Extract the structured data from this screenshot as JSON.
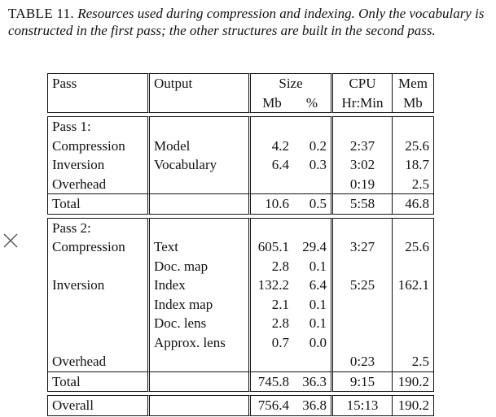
{
  "caption": {
    "label": "TABLE 11.",
    "text": "Resources used during compression and indexing. Only the vocabulary is constructed in the first pass; the other structures are built in the second pass."
  },
  "header": {
    "pass": "Pass",
    "output": "Output",
    "size": "Size",
    "cpu": "CPU",
    "mem": "Mem",
    "mb": "Mb",
    "pct": "%",
    "hrmin": "Hr:Min",
    "mem_mb": "Mb"
  },
  "pass1": {
    "title": "Pass 1:",
    "rows": [
      {
        "pass": "Compression",
        "output": "Model",
        "mb": "4.2",
        "pct": "0.2",
        "cpu": "2:37",
        "mem": "25.6"
      },
      {
        "pass": "Inversion",
        "output": "Vocabulary",
        "mb": "6.4",
        "pct": "0.3",
        "cpu": "3:02",
        "mem": "18.7"
      },
      {
        "pass": "Overhead",
        "output": "",
        "mb": "",
        "pct": "",
        "cpu": "0:19",
        "mem": "2.5"
      }
    ],
    "total": {
      "label": "Total",
      "mb": "10.6",
      "pct": "0.5",
      "cpu": "5:58",
      "mem": "46.8"
    }
  },
  "pass2": {
    "title": "Pass 2:",
    "rows": [
      {
        "pass": "Compression",
        "output": "Text",
        "mb": "605.1",
        "pct": "29.4",
        "cpu": "3:27",
        "mem": "25.6"
      },
      {
        "pass": "",
        "output": "Doc. map",
        "mb": "2.8",
        "pct": "0.1",
        "cpu": "",
        "mem": ""
      },
      {
        "pass": "Inversion",
        "output": "Index",
        "mb": "132.2",
        "pct": "6.4",
        "cpu": "5:25",
        "mem": "162.1"
      },
      {
        "pass": "",
        "output": "Index map",
        "mb": "2.1",
        "pct": "0.1",
        "cpu": "",
        "mem": ""
      },
      {
        "pass": "",
        "output": "Doc. lens",
        "mb": "2.8",
        "pct": "0.1",
        "cpu": "",
        "mem": ""
      },
      {
        "pass": "",
        "output": "Approx. lens",
        "mb": "0.7",
        "pct": "0.0",
        "cpu": "",
        "mem": ""
      },
      {
        "pass": "Overhead",
        "output": "",
        "mb": "",
        "pct": "",
        "cpu": "0:23",
        "mem": "2.5"
      }
    ],
    "total": {
      "label": "Total",
      "mb": "745.8",
      "pct": "36.3",
      "cpu": "9:15",
      "mem": "190.2"
    }
  },
  "overall": {
    "label": "Overall",
    "mb": "756.4",
    "pct": "36.8",
    "cpu": "15:13",
    "mem": "190.2"
  }
}
